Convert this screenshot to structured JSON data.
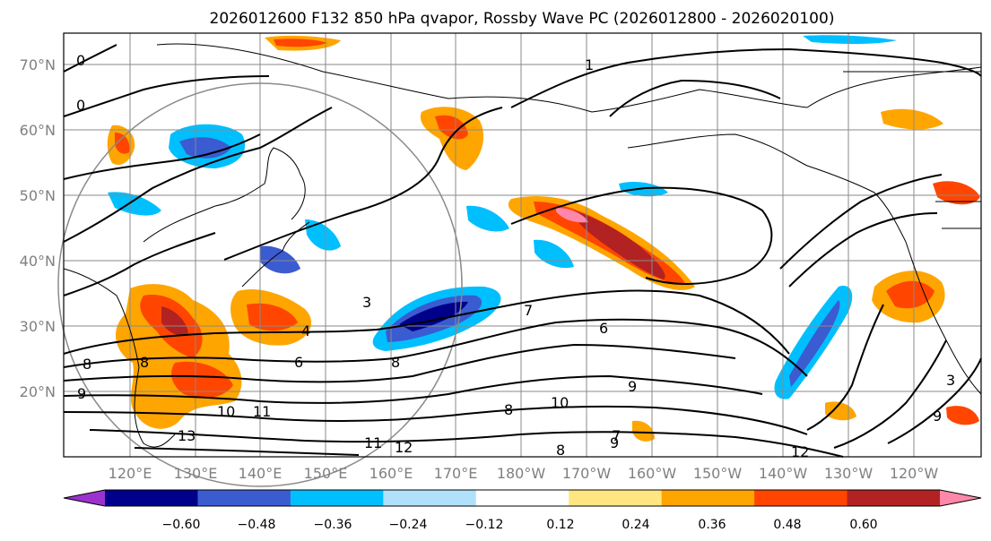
{
  "title": "2026012600 F132 850 hPa qvapor, Rossby Wave PC (2026012800 - 2026020100)",
  "map": {
    "lat_labels": [
      "70°N",
      "60°N",
      "50°N",
      "40°N",
      "30°N",
      "20°N"
    ],
    "lon_labels": [
      "120°E",
      "130°E",
      "140°E",
      "150°E",
      "160°E",
      "170°E",
      "180°W",
      "170°W",
      "160°W",
      "150°W",
      "140°W",
      "130°W",
      "120°W"
    ],
    "contour_labels": [
      "0",
      "1",
      "0",
      "3",
      "4",
      "6",
      "8",
      "7",
      "6",
      "8",
      "9",
      "9",
      "10",
      "11",
      "13",
      "8",
      "10",
      "11",
      "12",
      "8",
      "9",
      "3",
      "7",
      "12",
      "8",
      "9"
    ]
  },
  "colorbar": {
    "tick_labels": [
      "−0.60",
      "−0.48",
      "−0.36",
      "−0.24",
      "−0.12",
      "0.12",
      "0.24",
      "0.36",
      "0.48",
      "0.60"
    ],
    "colors": [
      "#9a32cd",
      "#00008b",
      "#3b5bd1",
      "#00bfff",
      "#b0e0fc",
      "#ffffff",
      "#ffe680",
      "#ffa500",
      "#ff4500",
      "#b22222",
      "#ff88aa"
    ]
  },
  "shading_colors": {
    "neg_strong": "#00008b",
    "neg_mid": "#3b5bd1",
    "neg_light": "#00bfff",
    "neg_pale": "#b0e0fc",
    "pos_pale": "#ffe680",
    "pos_light": "#ffa500",
    "pos_mid": "#ff4500",
    "pos_strong": "#b22222",
    "pos_max": "#ff88aa"
  }
}
